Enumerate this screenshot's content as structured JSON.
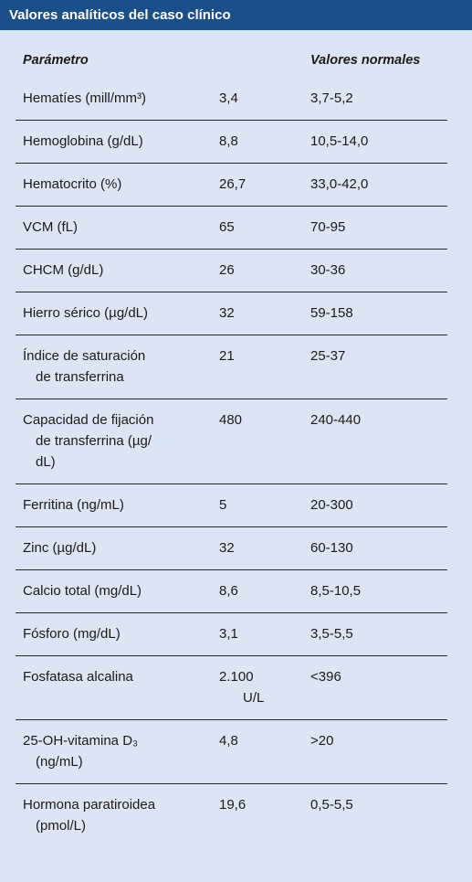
{
  "title": "Valores analíticos del caso clínico",
  "headers": {
    "parameter": "Parámetro",
    "normal": "Valores normales"
  },
  "rows": [
    {
      "param_lines": [
        "Hematíes (mill/mm³)"
      ],
      "value_lines": [
        "3,4"
      ],
      "normal": "3,7-5,2"
    },
    {
      "param_lines": [
        "Hemoglobina (g/dL)"
      ],
      "value_lines": [
        "8,8"
      ],
      "normal": "10,5-14,0"
    },
    {
      "param_lines": [
        "Hematocrito (%)"
      ],
      "value_lines": [
        "26,7"
      ],
      "normal": "33,0-42,0"
    },
    {
      "param_lines": [
        "VCM (fL)"
      ],
      "value_lines": [
        "65"
      ],
      "normal": "70-95"
    },
    {
      "param_lines": [
        "CHCM (g/dL)"
      ],
      "value_lines": [
        "26"
      ],
      "normal": "30-36"
    },
    {
      "param_lines": [
        "Hierro sérico (µg/dL)"
      ],
      "value_lines": [
        "32"
      ],
      "normal": "59-158"
    },
    {
      "param_lines": [
        "Índice de saturación",
        "de transferrina"
      ],
      "value_lines": [
        "21"
      ],
      "normal": "25-37"
    },
    {
      "param_lines": [
        "Capacidad de fijación",
        "de transferrina (µg/",
        "dL)"
      ],
      "value_lines": [
        "480"
      ],
      "normal": "240-440"
    },
    {
      "param_lines": [
        "Ferritina (ng/mL)"
      ],
      "value_lines": [
        "5"
      ],
      "normal": "20-300"
    },
    {
      "param_lines": [
        "Zinc (µg/dL)"
      ],
      "value_lines": [
        "32"
      ],
      "normal": "60-130"
    },
    {
      "param_lines": [
        "Calcio total (mg/dL)"
      ],
      "value_lines": [
        "8,6"
      ],
      "normal": "8,5-10,5"
    },
    {
      "param_lines": [
        "Fósforo (mg/dL)"
      ],
      "value_lines": [
        "3,1"
      ],
      "normal": "3,5-5,5"
    },
    {
      "param_lines": [
        "Fosfatasa alcalina"
      ],
      "value_lines": [
        "2.100",
        "U/L"
      ],
      "normal": "<396"
    },
    {
      "param_lines": [
        "25-OH-vitamina D₃",
        "(ng/mL)"
      ],
      "value_lines": [
        "4,8"
      ],
      "normal": ">20"
    },
    {
      "param_lines": [
        "Hormona paratiroidea",
        "(pmol/L)"
      ],
      "value_lines": [
        "19,6"
      ],
      "normal": "0,5-5,5"
    }
  ],
  "colors": {
    "title_bg": "#1a4f8a",
    "panel_bg": "#dce5f3",
    "text": "#1b1b1b"
  }
}
